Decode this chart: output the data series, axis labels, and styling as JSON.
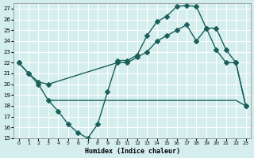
{
  "xlabel": "Humidex (Indice chaleur)",
  "bg_color": "#d4eeee",
  "grid_color": "#ffffff",
  "line_color": "#1a5f5a",
  "xlim": [
    -0.5,
    23.5
  ],
  "ylim": [
    15,
    27.5
  ],
  "yticks": [
    15,
    16,
    17,
    18,
    19,
    20,
    21,
    22,
    23,
    24,
    25,
    26,
    27
  ],
  "xticks": [
    0,
    1,
    2,
    3,
    4,
    5,
    6,
    7,
    8,
    9,
    10,
    11,
    12,
    13,
    14,
    15,
    16,
    17,
    18,
    19,
    20,
    21,
    22,
    23
  ],
  "line1_x": [
    0,
    1,
    2,
    3,
    4,
    5,
    6,
    7,
    8,
    9,
    10,
    11,
    12,
    13,
    14,
    15,
    16,
    17,
    18,
    19,
    20,
    21,
    22,
    23
  ],
  "line1_y": [
    22,
    21,
    20,
    18.5,
    17.5,
    16.3,
    15.5,
    15,
    16.3,
    19.3,
    22.2,
    22.2,
    22.7,
    24.5,
    25.8,
    26.3,
    27.2,
    27.3,
    27.2,
    25.2,
    23.2,
    22,
    22,
    18
  ],
  "line2_x": [
    0,
    1,
    2,
    3,
    10,
    11,
    12,
    13,
    14,
    15,
    16,
    17,
    18,
    19,
    20,
    21,
    22,
    23
  ],
  "line2_y": [
    22,
    21,
    20.2,
    20,
    22,
    22,
    22.5,
    23,
    24,
    24.5,
    25,
    25.5,
    24,
    25.2,
    25.2,
    23.2,
    22,
    18
  ],
  "line3_x": [
    3,
    4,
    5,
    6,
    7,
    8,
    9,
    10,
    11,
    12,
    13,
    14,
    15,
    16,
    17,
    18,
    19,
    20,
    21,
    22,
    23
  ],
  "line3_y": [
    18.5,
    18.5,
    18.5,
    18.5,
    18.5,
    18.5,
    18.5,
    18.5,
    18.5,
    18.5,
    18.5,
    18.5,
    18.5,
    18.5,
    18.5,
    18.5,
    18.5,
    18.5,
    18.5,
    18.5,
    18
  ]
}
